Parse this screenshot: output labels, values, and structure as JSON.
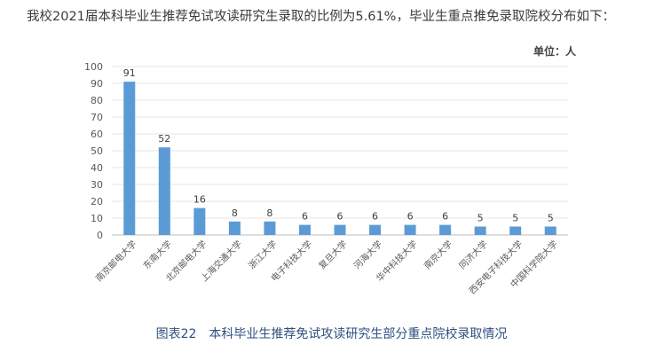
{
  "intro_text": "我校2021届本科毕业生推荐免试攻读研究生录取的比例为5.61%，毕业生重点推免录取院校分布如下：",
  "unit_label": "单位：人",
  "caption": "图表22　本科毕业生推荐免试攻读研究生部分重点院校录取情况",
  "colors": {
    "bar": "#5b9bd5",
    "axis": "#bfbfbf",
    "grid": "#e6e6e6",
    "text": "#595959"
  },
  "chart_data": {
    "type": "bar",
    "categories": [
      "南京邮电大学",
      "东南大学",
      "北京邮电大学",
      "上海交通大学",
      "浙江大学",
      "电子科技大学",
      "复旦大学",
      "河海大学",
      "华中科技大学",
      "南京大学",
      "同济大学",
      "西安电子科技大学",
      "中国科学院大学"
    ],
    "values": [
      91,
      52,
      16,
      8,
      8,
      6,
      6,
      6,
      6,
      6,
      5,
      5,
      5
    ],
    "ylim": [
      0,
      100
    ],
    "yticks": [
      0,
      10,
      20,
      30,
      40,
      50,
      60,
      70,
      80,
      90,
      100
    ],
    "grid": true,
    "data_labels": true
  }
}
